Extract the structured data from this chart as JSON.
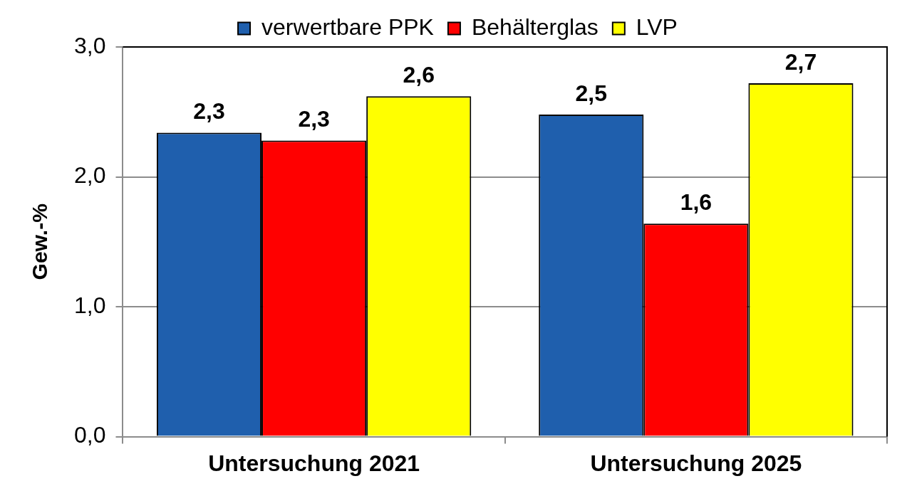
{
  "chart_data": {
    "type": "bar",
    "categories": [
      "Untersuchung 2021",
      "Untersuchung 2025"
    ],
    "series": [
      {
        "name": "verwertbare PPK",
        "color": "#1f5fad",
        "values": [
          2.34,
          2.48
        ],
        "value_labels": [
          "2,3",
          "2,5"
        ]
      },
      {
        "name": "Behälterglas",
        "color": "#ff0000",
        "values": [
          2.28,
          1.64
        ],
        "value_labels": [
          "2,3",
          "1,6"
        ]
      },
      {
        "name": "LVP",
        "color": "#ffff00",
        "values": [
          2.62,
          2.72
        ],
        "value_labels": [
          "2,6",
          "2,7"
        ]
      }
    ],
    "ylabel": "Gew.-%",
    "ylim": [
      0,
      3
    ],
    "yticks": [
      {
        "value": 0,
        "label": "0,0"
      },
      {
        "value": 1,
        "label": "1,0"
      },
      {
        "value": 2,
        "label": "2,0"
      },
      {
        "value": 3,
        "label": "3,0"
      }
    ],
    "grid": "y",
    "legend": "top"
  }
}
